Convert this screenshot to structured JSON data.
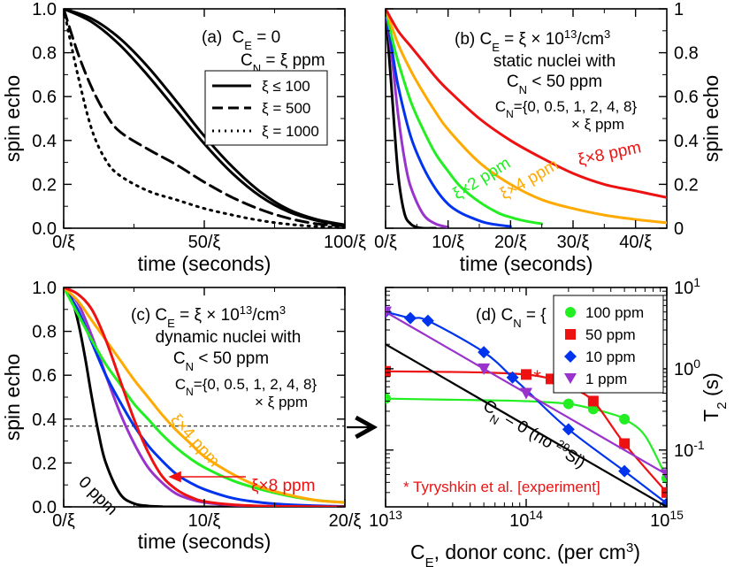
{
  "chart_data": [
    {
      "id": "a",
      "type": "line",
      "panel_label": "(a)",
      "annotation": [
        "C_E = 0",
        "C_N = ξ ppm"
      ],
      "xlabel": "time (seconds)",
      "ylabel": "spin echo",
      "xlim": [
        0,
        100
      ],
      "ylim": [
        0,
        1
      ],
      "xticks": [
        {
          "v": 0,
          "label": "0/ξ"
        },
        {
          "v": 50,
          "label": "50/ξ"
        },
        {
          "v": 100,
          "label": "100/ξ"
        }
      ],
      "yticks": [
        {
          "v": 0,
          "label": "0.0"
        },
        {
          "v": 0.2,
          "label": "0.2"
        },
        {
          "v": 0.4,
          "label": "0.4"
        },
        {
          "v": 0.6,
          "label": "0.6"
        },
        {
          "v": 0.8,
          "label": "0.8"
        },
        {
          "v": 1.0,
          "label": "1.0"
        }
      ],
      "legend": [
        "ξ ≤ 100",
        "ξ = 500",
        "ξ = 1000"
      ],
      "series": [
        {
          "name": "ξ ≤ 100 (upper)",
          "style": "solid",
          "color": "#000000",
          "x": [
            0,
            10,
            20,
            30,
            40,
            50,
            60,
            70,
            80,
            90,
            100
          ],
          "y": [
            1.0,
            0.955,
            0.865,
            0.735,
            0.58,
            0.42,
            0.28,
            0.165,
            0.085,
            0.04,
            0.015
          ]
        },
        {
          "name": "ξ ≤ 100 (lower)",
          "style": "solid",
          "color": "#000000",
          "x": [
            0,
            10,
            20,
            30,
            40,
            50,
            60,
            70,
            80,
            90,
            100
          ],
          "y": [
            1.0,
            0.94,
            0.835,
            0.695,
            0.54,
            0.385,
            0.25,
            0.145,
            0.075,
            0.035,
            0.012
          ]
        },
        {
          "name": "ξ = 500",
          "style": "dashed",
          "color": "#000000",
          "x": [
            0,
            5,
            10,
            15,
            20,
            30,
            40,
            50,
            60,
            70,
            80,
            90,
            100
          ],
          "y": [
            1.0,
            0.8,
            0.64,
            0.52,
            0.44,
            0.36,
            0.29,
            0.21,
            0.14,
            0.085,
            0.045,
            0.02,
            0.01
          ]
        },
        {
          "name": "ξ = 1000",
          "style": "dotted",
          "color": "#000000",
          "x": [
            0,
            5,
            10,
            15,
            20,
            30,
            40,
            50,
            60,
            70,
            80,
            90,
            100
          ],
          "y": [
            1.0,
            0.7,
            0.45,
            0.31,
            0.24,
            0.17,
            0.13,
            0.09,
            0.06,
            0.035,
            0.018,
            0.008,
            0.003
          ]
        }
      ]
    },
    {
      "id": "b",
      "type": "line",
      "panel_label": "(b)",
      "annotation": [
        "C_E = ξ × 10^13/cm^3",
        "static nuclei with",
        "C_N < 50 ppm"
      ],
      "annotation2": [
        "C_N={0, 0.5, 1, 2, 4, 8}",
        "× ξ ppm"
      ],
      "xlabel": "time (seconds)",
      "ylabel": "spin echo",
      "xlim": [
        0,
        45
      ],
      "ylim": [
        0,
        1
      ],
      "xticks": [
        {
          "v": 0,
          "label": "0/ξ"
        },
        {
          "v": 10,
          "label": "10/ξ"
        },
        {
          "v": 20,
          "label": "20/ξ"
        },
        {
          "v": 30,
          "label": "30/ξ"
        },
        {
          "v": 40,
          "label": "40/ξ"
        }
      ],
      "yticks": [
        {
          "v": 0,
          "label": "0"
        },
        {
          "v": 0.2,
          "label": "0.2"
        },
        {
          "v": 0.4,
          "label": "0.4"
        },
        {
          "v": 0.6,
          "label": "0.6"
        },
        {
          "v": 0.8,
          "label": "0.8"
        },
        {
          "v": 1.0,
          "label": "1"
        }
      ],
      "curve_labels": [
        "ξ×8 ppm",
        "ξ×4 ppm",
        "ξ×2 ppm"
      ],
      "series": [
        {
          "name": "0 ppm",
          "color": "#000000",
          "x": [
            0,
            1,
            2,
            3,
            4,
            5,
            6,
            8
          ],
          "y": [
            1.0,
            0.62,
            0.25,
            0.07,
            0.02,
            0.005,
            0.0,
            0.0
          ]
        },
        {
          "name": "0.5ξ ppm",
          "color": "#9933cc",
          "x": [
            0,
            1,
            2,
            3,
            4,
            6,
            8,
            10
          ],
          "y": [
            1.0,
            0.78,
            0.52,
            0.32,
            0.19,
            0.065,
            0.02,
            0.005
          ]
        },
        {
          "name": "ξ ppm",
          "color": "#0033ee",
          "x": [
            0,
            1,
            2,
            4,
            6,
            8,
            10,
            12,
            14,
            16,
            18,
            20
          ],
          "y": [
            1.0,
            0.82,
            0.65,
            0.42,
            0.28,
            0.18,
            0.11,
            0.07,
            0.045,
            0.025,
            0.015,
            0.008
          ]
        },
        {
          "name": "2ξ ppm",
          "color": "#22ee22",
          "x": [
            0,
            1,
            2,
            4,
            6,
            8,
            10,
            12,
            15,
            18,
            20,
            22,
            25
          ],
          "y": [
            1.0,
            0.87,
            0.76,
            0.58,
            0.45,
            0.34,
            0.26,
            0.19,
            0.12,
            0.07,
            0.05,
            0.035,
            0.02
          ]
        },
        {
          "name": "4ξ ppm",
          "color": "#ffaa00",
          "x": [
            0,
            2,
            4,
            6,
            8,
            10,
            15,
            20,
            25,
            30,
            35,
            40,
            45
          ],
          "y": [
            1.0,
            0.84,
            0.72,
            0.62,
            0.53,
            0.45,
            0.3,
            0.2,
            0.13,
            0.09,
            0.06,
            0.04,
            0.025
          ]
        },
        {
          "name": "8ξ ppm",
          "color": "#ee1111",
          "x": [
            0,
            2,
            4,
            6,
            8,
            10,
            15,
            20,
            25,
            30,
            35,
            40,
            45
          ],
          "y": [
            1.0,
            0.9,
            0.83,
            0.76,
            0.69,
            0.63,
            0.5,
            0.4,
            0.32,
            0.25,
            0.2,
            0.17,
            0.14
          ]
        }
      ]
    },
    {
      "id": "c",
      "type": "line",
      "panel_label": "(c)",
      "annotation": [
        "C_E = ξ × 10^13/cm^3",
        "dynamic nuclei with",
        "C_N < 50 ppm"
      ],
      "annotation2": [
        "C_N={0, 0.5, 1, 2, 4, 8}",
        "× ξ ppm"
      ],
      "xlabel": "time (seconds)",
      "ylabel": "spin echo",
      "xlim": [
        0,
        20
      ],
      "ylim": [
        0,
        1
      ],
      "xticks": [
        {
          "v": 0,
          "label": "0/ξ"
        },
        {
          "v": 10,
          "label": "10/ξ"
        },
        {
          "v": 20,
          "label": "20/ξ"
        }
      ],
      "yticks": [
        {
          "v": 0,
          "label": "0.0"
        },
        {
          "v": 0.2,
          "label": "0.2"
        },
        {
          "v": 0.4,
          "label": "0.4"
        },
        {
          "v": 0.6,
          "label": "0.6"
        },
        {
          "v": 0.8,
          "label": "0.8"
        },
        {
          "v": 1.0,
          "label": "1.0"
        }
      ],
      "reference_line": 0.368,
      "curve_labels": [
        "ξ×4 ppm",
        "ξ×8 ppm",
        "0 ppm"
      ],
      "series": [
        {
          "name": "0 ppm",
          "color": "#000000",
          "x": [
            0,
            0.5,
            1,
            1.5,
            2,
            2.5,
            3,
            4,
            5,
            6,
            7,
            8,
            20
          ],
          "y": [
            1.0,
            0.96,
            0.85,
            0.69,
            0.5,
            0.33,
            0.2,
            0.06,
            0.015,
            0.004,
            0.001,
            0.0,
            0.0
          ]
        },
        {
          "name": "0.5ξ ppm",
          "color": "#9933cc",
          "x": [
            0,
            1,
            2,
            3,
            4,
            5,
            6,
            7,
            8,
            9,
            10,
            12,
            14,
            16,
            20
          ],
          "y": [
            1.0,
            0.93,
            0.78,
            0.6,
            0.43,
            0.29,
            0.18,
            0.11,
            0.06,
            0.035,
            0.02,
            0.008,
            0.003,
            0.001,
            0.0
          ]
        },
        {
          "name": "ξ ppm",
          "color": "#0033ee",
          "x": [
            0,
            1,
            2,
            3,
            4,
            5,
            6,
            7,
            8,
            9,
            10,
            12,
            14,
            16,
            18,
            20
          ],
          "y": [
            1.0,
            0.9,
            0.75,
            0.6,
            0.48,
            0.37,
            0.28,
            0.21,
            0.15,
            0.11,
            0.08,
            0.04,
            0.02,
            0.01,
            0.005,
            0.002
          ]
        },
        {
          "name": "2ξ ppm",
          "color": "#22ee22",
          "x": [
            0,
            1,
            2,
            3,
            4,
            5,
            6,
            7,
            8,
            9,
            10,
            12,
            14,
            16,
            18,
            20
          ],
          "y": [
            1.0,
            0.88,
            0.76,
            0.65,
            0.56,
            0.47,
            0.4,
            0.33,
            0.27,
            0.22,
            0.18,
            0.12,
            0.08,
            0.05,
            0.03,
            0.02
          ]
        },
        {
          "name": "4ξ ppm",
          "color": "#ffaa00",
          "x": [
            0,
            1,
            2,
            3,
            4,
            5,
            6,
            7,
            8,
            9,
            10,
            12,
            14,
            16,
            18,
            20
          ],
          "y": [
            1.0,
            0.94,
            0.85,
            0.76,
            0.67,
            0.58,
            0.5,
            0.42,
            0.35,
            0.29,
            0.23,
            0.15,
            0.09,
            0.055,
            0.03,
            0.02
          ]
        },
        {
          "name": "8ξ ppm",
          "color": "#ee1111",
          "x": [
            0,
            1,
            2,
            3,
            4,
            5,
            6,
            7,
            8,
            9,
            10,
            12,
            14,
            16,
            18,
            20
          ],
          "y": [
            1.0,
            0.97,
            0.9,
            0.76,
            0.58,
            0.4,
            0.25,
            0.14,
            0.08,
            0.045,
            0.025,
            0.01,
            0.004,
            0.002,
            0.001,
            0.0
          ]
        }
      ]
    },
    {
      "id": "d",
      "type": "line",
      "panel_label": "(d)",
      "annotation": [
        "(d) C_N = {"
      ],
      "xlabel": "C_E, donor conc. (per cm^3)",
      "ylabel": "T_2 (s)",
      "xscale": "log",
      "yscale": "log",
      "xlim": [
        10000000000000.0,
        1000000000000000.0
      ],
      "ylim": [
        0.02,
        10
      ],
      "xticks": [
        {
          "v": 10000000000000.0,
          "label": "10^13"
        },
        {
          "v": 100000000000000.0,
          "label": "10^14"
        },
        {
          "v": 1000000000000000.0,
          "label": "10^15"
        }
      ],
      "yticks": [
        {
          "v": 0.1,
          "label": "10^-1"
        },
        {
          "v": 1,
          "label": "10^0"
        },
        {
          "v": 10,
          "label": "10^1"
        }
      ],
      "legend": [
        "100 ppm",
        "50 ppm",
        "10 ppm",
        "1 ppm"
      ],
      "zero_line_label": "C_N = 0 (no 29Si)",
      "experiment_label": "* Tyryshkin et al. [experiment]",
      "experiment": {
        "x": [
          120000000000000.0
        ],
        "y": [
          0.82
        ]
      },
      "series": [
        {
          "name": "100 ppm",
          "color": "#22ee22",
          "marker": "circle",
          "x": [
            10000000000000.0,
            20000000000000.0,
            50000000000000.0,
            100000000000000.0,
            200000000000000.0,
            300000000000000.0,
            400000000000000.0,
            500000000000000.0,
            700000000000000.0,
            1000000000000000.0
          ],
          "y": [
            0.43,
            0.42,
            0.41,
            0.4,
            0.37,
            0.32,
            0.28,
            0.24,
            0.15,
            0.045
          ],
          "marker_x": [
            10000000000000.0,
            200000000000000.0,
            300000000000000.0,
            500000000000000.0,
            1000000000000000.0
          ]
        },
        {
          "name": "50 ppm",
          "color": "#ee1111",
          "marker": "square",
          "x": [
            10000000000000.0,
            20000000000000.0,
            50000000000000.0,
            100000000000000.0,
            150000000000000.0,
            200000000000000.0,
            300000000000000.0,
            500000000000000.0,
            1000000000000000.0
          ],
          "y": [
            0.93,
            0.92,
            0.9,
            0.85,
            0.75,
            0.6,
            0.4,
            0.12,
            0.03
          ],
          "marker_x": [
            10000000000000.0,
            100000000000000.0,
            150000000000000.0,
            200000000000000.0,
            300000000000000.0,
            500000000000000.0,
            1000000000000000.0
          ]
        },
        {
          "name": "10 ppm",
          "color": "#0033ee",
          "marker": "diamond",
          "x": [
            10000000000000.0,
            15000000000000.0,
            20000000000000.0,
            50000000000000.0,
            80000000000000.0,
            100000000000000.0,
            200000000000000.0,
            500000000000000.0,
            1000000000000000.0
          ],
          "y": [
            5.0,
            4.2,
            3.9,
            1.6,
            0.78,
            0.55,
            0.18,
            0.055,
            0.022
          ],
          "marker_x": [
            10000000000000.0,
            15000000000000.0,
            20000000000000.0,
            50000000000000.0,
            80000000000000.0,
            200000000000000.0,
            500000000000000.0,
            1000000000000000.0
          ]
        },
        {
          "name": "1 ppm",
          "color": "#9933cc",
          "marker": "triangle",
          "x": [
            10000000000000.0,
            20000000000000.0,
            50000000000000.0,
            100000000000000.0,
            200000000000000.0,
            500000000000000.0,
            1000000000000000.0
          ],
          "y": [
            5.0,
            2.5,
            1.0,
            0.5,
            0.25,
            0.1,
            0.05
          ],
          "marker_x": [
            10000000000000.0,
            50000000000000.0,
            100000000000000.0,
            1000000000000000.0
          ]
        },
        {
          "name": "C_N = 0",
          "color": "#000000",
          "marker": "none",
          "x": [
            10000000000000.0,
            1000000000000000.0
          ],
          "y": [
            2.0,
            0.02
          ]
        }
      ]
    }
  ],
  "arrow_label": "→"
}
